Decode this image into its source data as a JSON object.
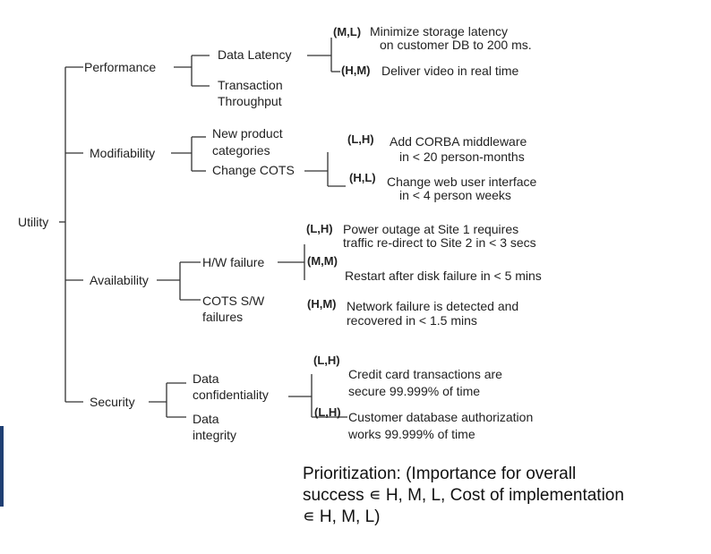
{
  "root": "Utility",
  "performance": {
    "label": "Performance",
    "data_latency": "Data Latency",
    "throughput": [
      "Transaction",
      "Throughput"
    ],
    "s1_priority": "(M,L)",
    "s1_text": [
      "Minimize storage latency",
      "on customer DB to 200 ms."
    ],
    "s2_priority": "(H,M)",
    "s2_text": "Deliver video in real time"
  },
  "modifiability": {
    "label": "Modifiability",
    "new_product": [
      "New product",
      "categories"
    ],
    "change_cots": "Change COTS",
    "s1_priority": "(L,H)",
    "s1_text": [
      "Add CORBA middleware",
      "in < 20 person-months"
    ],
    "s2_priority": "(H,L)",
    "s2_text": [
      "Change web user interface",
      "in < 4 person weeks"
    ]
  },
  "availability": {
    "label": "Availability",
    "hw_failure": "H/W failure",
    "cots_sw": [
      "COTS S/W",
      "failures"
    ],
    "s1_priority": "(L,H)",
    "s1_text": [
      "Power outage at Site 1 requires",
      "traffic re-direct to Site 2 in < 3 secs"
    ],
    "s2_priority": "(M,M)",
    "s2_text": "Restart after disk failure in < 5 mins",
    "s3_priority": "(H,M)",
    "s3_text": [
      "Network failure is detected and",
      "recovered in < 1.5 mins"
    ]
  },
  "security": {
    "label": "Security",
    "confidentiality": [
      "Data",
      "confidentiality"
    ],
    "integrity": [
      "Data",
      "integrity"
    ],
    "s1_priority": "(L,H)",
    "s1_text": [
      "Credit card transactions are",
      "secure 99.999% of time"
    ],
    "s2_priority": "(L,H)",
    "s2_text": [
      "Customer database authorization",
      "works 99.999% of time"
    ]
  },
  "caption": [
    "Prioritization: (Importance for overall",
    "success ∊ H, M, L, Cost of implementation",
    "∊ H, M, L)"
  ]
}
